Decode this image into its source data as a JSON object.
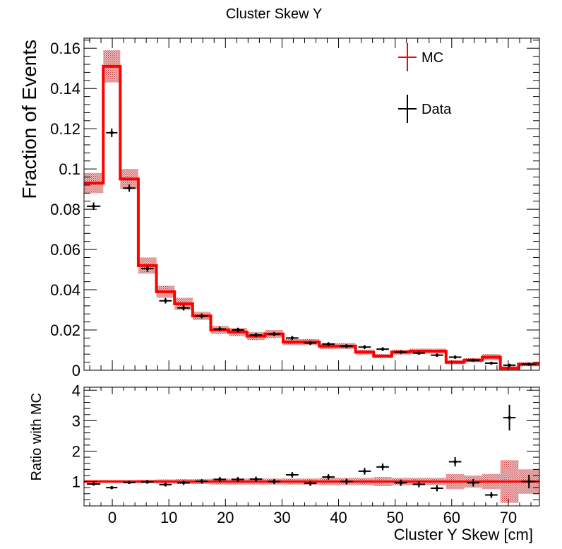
{
  "colors": {
    "mc": "#ff0000",
    "mc_band": "#c0393b",
    "data": "#000000",
    "frame": "#000000"
  },
  "chart_data": [
    {
      "type": "histogram",
      "title": "Cluster Skew Y",
      "xlabel": "",
      "ylabel": "Fraction of Events",
      "xlim": [
        -5,
        75.5
      ],
      "ylim": [
        0,
        0.165
      ],
      "x_ticks": [
        0,
        10,
        20,
        30,
        40,
        50,
        60,
        70
      ],
      "y_ticks": [
        0,
        0.02,
        0.04,
        0.06,
        0.08,
        0.1,
        0.12,
        0.14,
        0.16
      ],
      "y_tick_labels": [
        "0",
        "0.02",
        "0.04",
        "0.06",
        "0.08",
        "0.1",
        "0.12",
        "0.14",
        "0.16"
      ],
      "legend": {
        "position": "top-right",
        "entries": [
          "MC",
          "Data"
        ]
      },
      "bin_edges": [
        -5,
        -1.6,
        1.4,
        4.6,
        7.8,
        11.0,
        14.2,
        17.4,
        20.6,
        23.8,
        27.0,
        30.2,
        33.4,
        36.6,
        39.8,
        43.0,
        46.2,
        49.4,
        52.6,
        55.8,
        59.0,
        62.2,
        65.4,
        68.6,
        71.8,
        75.5
      ],
      "series": [
        {
          "name": "MC",
          "style": "step-with-band",
          "values": [
            0.093,
            0.151,
            0.095,
            0.052,
            0.039,
            0.033,
            0.027,
            0.02,
            0.019,
            0.017,
            0.018,
            0.014,
            0.014,
            0.012,
            0.012,
            0.009,
            0.007,
            0.009,
            0.0095,
            0.0095,
            0.004,
            0.005,
            0.0065,
            0.001,
            0.003
          ],
          "band": [
            0.005,
            0.008,
            0.005,
            0.004,
            0.003,
            0.003,
            0.002,
            0.002,
            0.002,
            0.002,
            0.002,
            0.0015,
            0.0015,
            0.0015,
            0.0015,
            0.0012,
            0.001,
            0.0012,
            0.0012,
            0.0012,
            0.001,
            0.001,
            0.0015,
            0.001,
            0.001
          ]
        },
        {
          "name": "Data",
          "style": "points-with-errors",
          "values": [
            0.0815,
            0.118,
            0.0905,
            0.0505,
            0.0345,
            0.031,
            0.027,
            0.0205,
            0.02,
            0.0175,
            0.018,
            0.016,
            0.0135,
            0.013,
            0.012,
            0.0115,
            0.0105,
            0.009,
            0.0085,
            0.0075,
            0.0065,
            0.005,
            0.0035,
            0.0025,
            0.003
          ],
          "errors": [
            0.0015,
            0.0018,
            0.0015,
            0.0012,
            0.001,
            0.001,
            0.0009,
            0.0008,
            0.0008,
            0.0007,
            0.0007,
            0.0007,
            0.0006,
            0.0006,
            0.0006,
            0.0006,
            0.0006,
            0.0005,
            0.0005,
            0.0005,
            0.0005,
            0.0004,
            0.0004,
            0.0004,
            0.0004
          ]
        }
      ]
    },
    {
      "type": "histogram",
      "title": "",
      "xlabel": "Cluster Y Skew [cm]",
      "ylabel": "Ratio with MC",
      "xlim": [
        -5,
        75.5
      ],
      "ylim": [
        0.2,
        4.1
      ],
      "x_ticks": [
        0,
        10,
        20,
        30,
        40,
        50,
        60,
        70
      ],
      "y_ticks": [
        1,
        2,
        3,
        4
      ],
      "y_tick_labels": [
        "1",
        "2",
        "3",
        "4"
      ],
      "bin_edges": [
        -5,
        -1.6,
        1.4,
        4.6,
        7.8,
        11.0,
        14.2,
        17.4,
        20.6,
        23.8,
        27.0,
        30.2,
        33.4,
        36.6,
        39.8,
        43.0,
        46.2,
        49.4,
        52.6,
        55.8,
        59.0,
        62.2,
        65.4,
        68.6,
        71.8,
        75.5
      ],
      "series": [
        {
          "name": "MC",
          "style": "reference-line-with-band",
          "values": [
            1,
            1,
            1,
            1,
            1,
            1,
            1,
            1,
            1,
            1,
            1,
            1,
            1,
            1,
            1,
            1,
            1,
            1,
            1,
            1,
            1,
            1,
            1,
            1,
            1
          ],
          "band": [
            0.05,
            0.05,
            0.05,
            0.06,
            0.07,
            0.08,
            0.08,
            0.1,
            0.1,
            0.1,
            0.1,
            0.1,
            0.1,
            0.12,
            0.12,
            0.12,
            0.15,
            0.12,
            0.12,
            0.12,
            0.25,
            0.2,
            0.25,
            0.7,
            0.4
          ]
        },
        {
          "name": "Data",
          "style": "points-with-errors",
          "values": [
            0.92,
            0.8,
            0.97,
            0.99,
            0.9,
            0.96,
            1.01,
            1.07,
            1.07,
            1.08,
            1.0,
            1.22,
            0.94,
            1.15,
            1.0,
            1.34,
            1.48,
            0.96,
            0.91,
            0.78,
            1.65,
            0.96,
            0.56,
            3.1,
            1.0
          ],
          "errors": [
            0.03,
            0.03,
            0.03,
            0.04,
            0.04,
            0.05,
            0.05,
            0.06,
            0.06,
            0.06,
            0.06,
            0.07,
            0.06,
            0.07,
            0.07,
            0.09,
            0.09,
            0.08,
            0.08,
            0.08,
            0.13,
            0.1,
            0.08,
            0.4,
            0.2
          ]
        }
      ]
    }
  ]
}
